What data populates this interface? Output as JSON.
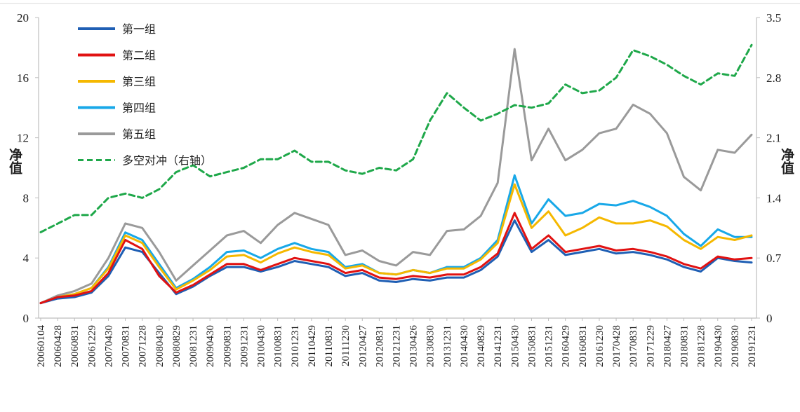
{
  "chart_data": {
    "type": "line",
    "title": "",
    "y_left": {
      "label": "净值",
      "ticks": [
        "0",
        "4",
        "8",
        "12",
        "16",
        "20"
      ],
      "range": [
        0,
        20
      ]
    },
    "y_right": {
      "label": "净值",
      "ticks": [
        "0",
        "0.7",
        "1.4",
        "2.1",
        "2.8",
        "3.5"
      ],
      "range": [
        0,
        3.5
      ]
    },
    "x_tick_labels": [
      "20060104",
      "20060428",
      "20060831",
      "20061229",
      "20070430",
      "20070831",
      "20071228",
      "20080430",
      "20080829",
      "20081231",
      "20090430",
      "20090831",
      "20091231",
      "20100430",
      "20100831",
      "20101231",
      "20110429",
      "20110831",
      "20111230",
      "20120427",
      "20120831",
      "20121231",
      "20130426",
      "20130830",
      "20131231",
      "20140430",
      "20140829",
      "20141231",
      "20150430",
      "20150831",
      "20151231",
      "20160429",
      "20160831",
      "20161230",
      "20170428",
      "20170831",
      "20171229",
      "20180427",
      "20180831",
      "20181228",
      "20190430",
      "20190830",
      "20191231"
    ],
    "legend_position": "top-left",
    "series": [
      {
        "name": "第一组",
        "color": "#1f5fb4",
        "style": "solid",
        "axis": "left",
        "values": [
          1.0,
          1.3,
          1.4,
          1.7,
          2.8,
          4.7,
          4.4,
          3.0,
          1.6,
          2.1,
          2.8,
          3.4,
          3.4,
          3.1,
          3.4,
          3.8,
          3.6,
          3.4,
          2.8,
          3.0,
          2.5,
          2.4,
          2.6,
          2.5,
          2.7,
          2.7,
          3.2,
          4.1,
          6.5,
          4.4,
          5.2,
          4.2,
          4.4,
          4.6,
          4.3,
          4.4,
          4.2,
          3.9,
          3.4,
          3.1,
          4.0,
          3.8,
          3.7
        ]
      },
      {
        "name": "第二组",
        "color": "#e11212",
        "style": "solid",
        "axis": "left",
        "values": [
          1.0,
          1.4,
          1.5,
          1.8,
          3.0,
          5.2,
          4.6,
          2.8,
          1.7,
          2.2,
          2.9,
          3.6,
          3.6,
          3.2,
          3.6,
          4.0,
          3.8,
          3.6,
          3.0,
          3.2,
          2.7,
          2.6,
          2.8,
          2.7,
          2.9,
          2.9,
          3.4,
          4.3,
          7.0,
          4.6,
          5.5,
          4.4,
          4.6,
          4.8,
          4.5,
          4.6,
          4.4,
          4.1,
          3.6,
          3.3,
          4.1,
          3.9,
          4.0
        ]
      },
      {
        "name": "第三组",
        "color": "#f5b800",
        "style": "solid",
        "axis": "left",
        "values": [
          1.0,
          1.4,
          1.6,
          2.0,
          3.3,
          5.5,
          5.0,
          3.4,
          1.9,
          2.5,
          3.2,
          4.1,
          4.2,
          3.7,
          4.3,
          4.7,
          4.4,
          4.2,
          3.3,
          3.5,
          3.0,
          2.9,
          3.2,
          3.0,
          3.3,
          3.3,
          3.9,
          5.0,
          8.9,
          6.0,
          7.1,
          5.5,
          6.0,
          6.7,
          6.3,
          6.3,
          6.5,
          6.1,
          5.2,
          4.6,
          5.4,
          5.2,
          5.5
        ]
      },
      {
        "name": "第四组",
        "color": "#18a8e8",
        "style": "solid",
        "axis": "left",
        "values": [
          1.0,
          1.4,
          1.6,
          2.0,
          3.4,
          5.7,
          5.2,
          3.6,
          2.0,
          2.6,
          3.4,
          4.4,
          4.5,
          4.0,
          4.6,
          5.0,
          4.6,
          4.4,
          3.4,
          3.6,
          3.0,
          2.9,
          3.2,
          3.0,
          3.4,
          3.4,
          4.0,
          5.2,
          9.5,
          6.3,
          7.9,
          6.8,
          7.0,
          7.6,
          7.5,
          7.8,
          7.4,
          6.8,
          5.6,
          4.8,
          5.9,
          5.4,
          5.4
        ]
      },
      {
        "name": "第五组",
        "color": "#9a9a9a",
        "style": "solid",
        "axis": "left",
        "values": [
          1.0,
          1.5,
          1.8,
          2.3,
          4.0,
          6.3,
          6.0,
          4.4,
          2.5,
          3.5,
          4.5,
          5.5,
          5.8,
          5.0,
          6.2,
          7.0,
          6.6,
          6.2,
          4.2,
          4.5,
          3.8,
          3.5,
          4.4,
          4.2,
          5.8,
          5.9,
          6.8,
          9.0,
          17.9,
          10.5,
          12.6,
          10.5,
          11.2,
          12.3,
          12.6,
          14.2,
          13.6,
          12.3,
          9.4,
          8.5,
          11.2,
          11.0,
          12.2
        ]
      },
      {
        "name": "多空对冲（右轴）",
        "color": "#1fa84a",
        "style": "dashed",
        "axis": "right",
        "values": [
          1.0,
          1.1,
          1.2,
          1.2,
          1.4,
          1.45,
          1.4,
          1.5,
          1.7,
          1.78,
          1.65,
          1.7,
          1.75,
          1.85,
          1.85,
          1.95,
          1.82,
          1.82,
          1.72,
          1.68,
          1.75,
          1.72,
          1.85,
          2.3,
          2.62,
          2.45,
          2.3,
          2.38,
          2.48,
          2.45,
          2.5,
          2.72,
          2.62,
          2.65,
          2.8,
          3.12,
          3.05,
          2.95,
          2.82,
          2.72,
          2.85,
          2.82,
          3.18
        ]
      }
    ]
  }
}
